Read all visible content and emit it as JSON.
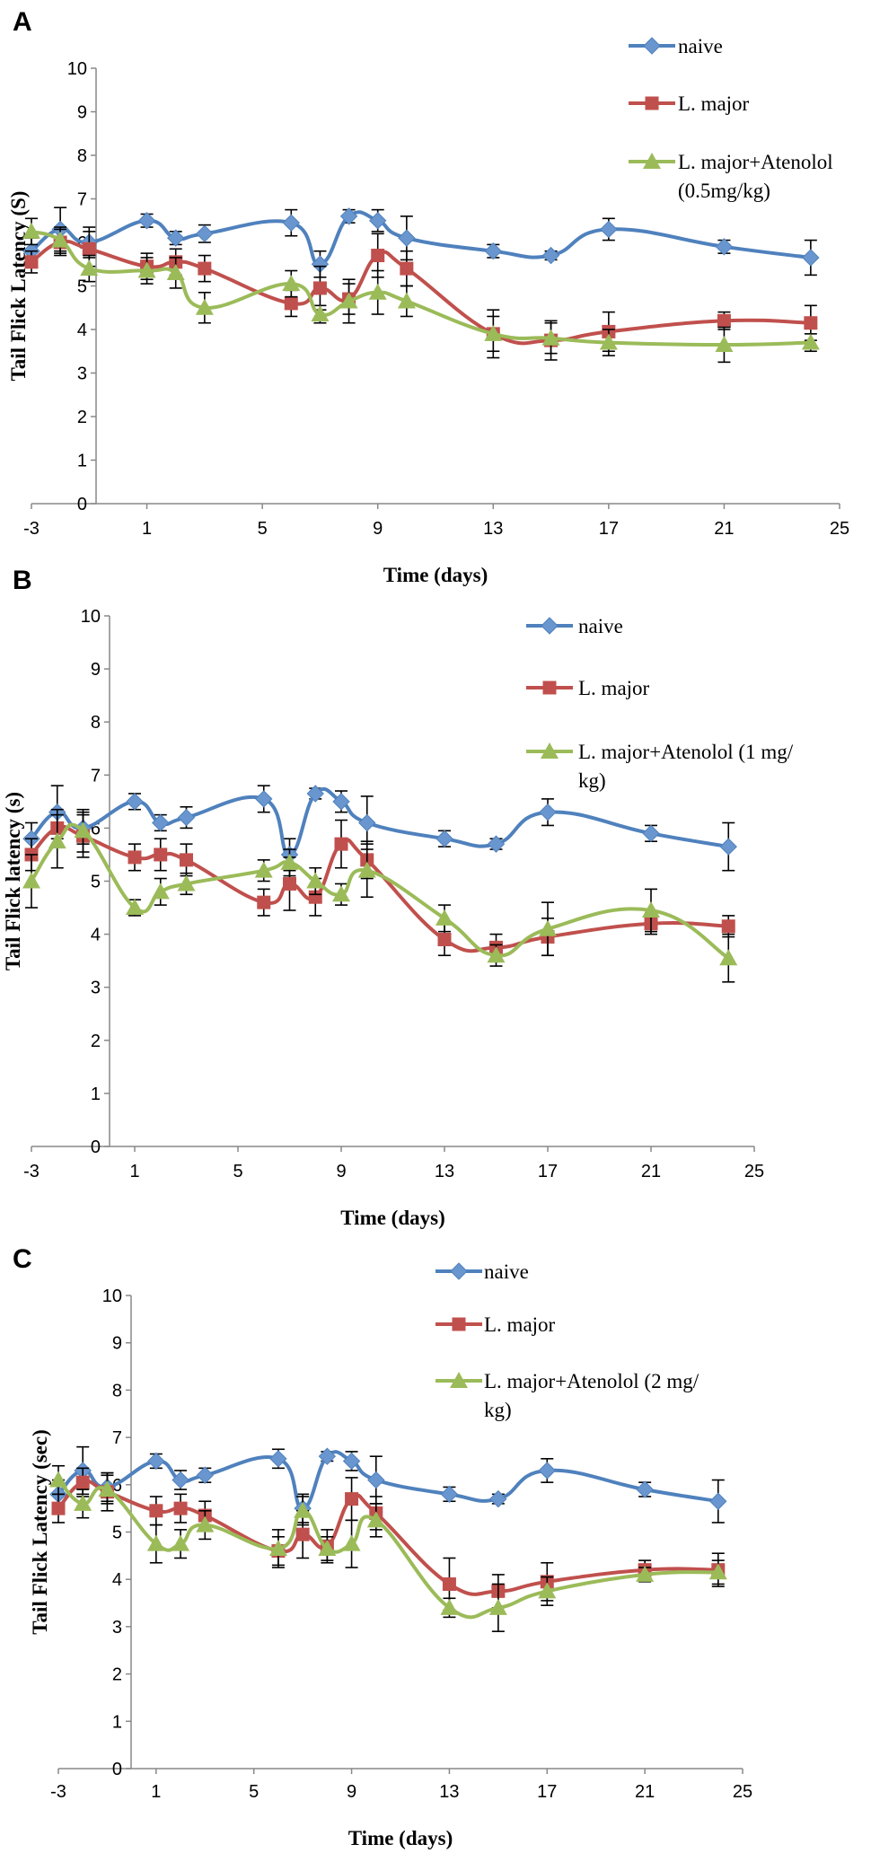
{
  "colors": {
    "naive": "#4F81BD",
    "lmajor": "#C0504D",
    "atenolol": "#9BBB59",
    "naive_marker": "#6A96CF"
  },
  "chart_data": [
    {
      "panel_label": "A",
      "type": "line",
      "xlabel": "Time (days)",
      "ylabel": "Tail Flick Latency (S)",
      "xlim": [
        -3,
        25
      ],
      "ylim": [
        0,
        10
      ],
      "xticks": [
        "-3",
        "1",
        "5",
        "9",
        "13",
        "17",
        "21",
        "25"
      ],
      "yticks": [
        "0",
        "1",
        "2",
        "3",
        "4",
        "5",
        "6",
        "7",
        "8",
        "9",
        "10"
      ],
      "legend_position": "top-right",
      "series": [
        {
          "name": "naive",
          "color": "#4F81BD",
          "marker": "diamond",
          "x": [
            -3,
            -2,
            -1,
            1,
            2,
            3,
            6,
            7,
            8,
            9,
            10,
            13,
            15,
            17,
            21,
            24
          ],
          "y": [
            5.8,
            6.3,
            6.0,
            6.5,
            6.1,
            6.2,
            6.45,
            5.5,
            6.6,
            6.5,
            6.1,
            5.8,
            5.7,
            6.3,
            5.9,
            5.65
          ],
          "err": [
            0.3,
            0.5,
            0.35,
            0.15,
            0.15,
            0.2,
            0.3,
            0.3,
            0.15,
            0.25,
            0.5,
            0.15,
            0.1,
            0.25,
            0.15,
            0.4
          ]
        },
        {
          "name": "L. major",
          "color": "#C0504D",
          "marker": "square",
          "x": [
            -3,
            -2,
            -1,
            1,
            2,
            3,
            6,
            7,
            8,
            9,
            10,
            13,
            15,
            17,
            21,
            24
          ],
          "y": [
            5.55,
            6.0,
            5.85,
            5.45,
            5.55,
            5.4,
            4.6,
            4.95,
            4.7,
            5.7,
            5.4,
            3.9,
            3.75,
            3.95,
            4.2,
            4.15
          ],
          "err": [
            0.25,
            0.3,
            0.4,
            0.3,
            0.3,
            0.3,
            0.3,
            0.5,
            0.35,
            0.5,
            0.4,
            0.55,
            0.45,
            0.45,
            0.2,
            0.4
          ]
        },
        {
          "name": "L. major+Atenolol (0.5mg/kg)",
          "name_lines": [
            "L. major+Atenolol",
            "(0.5mg/kg)"
          ],
          "color": "#9BBB59",
          "marker": "triangle",
          "x": [
            -3,
            -2,
            -1,
            1,
            2,
            3,
            6,
            7,
            8,
            9,
            10,
            13,
            15,
            17,
            21,
            24
          ],
          "y": [
            6.25,
            6.05,
            5.4,
            5.35,
            5.3,
            4.5,
            5.05,
            4.35,
            4.65,
            4.85,
            4.65,
            3.9,
            3.8,
            3.7,
            3.65,
            3.7
          ],
          "err": [
            0.3,
            0.3,
            0.3,
            0.3,
            0.35,
            0.35,
            0.3,
            0.2,
            0.5,
            0.5,
            0.35,
            0.4,
            0.35,
            0.3,
            0.4,
            0.2
          ]
        }
      ]
    },
    {
      "panel_label": "B",
      "type": "line",
      "xlabel": "Time (days)",
      "ylabel": "Tail Flick latency (s)",
      "xlim": [
        -3,
        25
      ],
      "ylim": [
        0,
        10
      ],
      "xticks": [
        "-3",
        "1",
        "5",
        "9",
        "13",
        "17",
        "21",
        "25"
      ],
      "yticks": [
        "0",
        "1",
        "2",
        "3",
        "4",
        "5",
        "6",
        "7",
        "8",
        "9",
        "10"
      ],
      "legend_position": "top-right",
      "series": [
        {
          "name": "naive",
          "color": "#4F81BD",
          "marker": "diamond",
          "x": [
            -3,
            -2,
            -1,
            1,
            2,
            3,
            6,
            7,
            8,
            9,
            10,
            13,
            15,
            17,
            21,
            24
          ],
          "y": [
            5.8,
            6.3,
            6.0,
            6.5,
            6.1,
            6.2,
            6.55,
            5.5,
            6.65,
            6.5,
            6.1,
            5.8,
            5.7,
            6.3,
            5.9,
            5.65
          ],
          "err": [
            0.3,
            0.5,
            0.3,
            0.15,
            0.15,
            0.2,
            0.25,
            0.3,
            0.1,
            0.2,
            0.5,
            0.15,
            0.1,
            0.25,
            0.15,
            0.45
          ]
        },
        {
          "name": "L. major",
          "color": "#C0504D",
          "marker": "square",
          "x": [
            -3,
            -2,
            -1,
            1,
            2,
            3,
            6,
            7,
            8,
            9,
            10,
            13,
            15,
            17,
            21,
            24
          ],
          "y": [
            5.5,
            6.0,
            5.85,
            5.45,
            5.5,
            5.4,
            4.6,
            4.95,
            4.7,
            5.7,
            5.4,
            3.9,
            3.75,
            3.95,
            4.2,
            4.15
          ],
          "err": [
            0.3,
            0.35,
            0.4,
            0.25,
            0.3,
            0.3,
            0.25,
            0.5,
            0.35,
            0.45,
            0.35,
            0.3,
            0.25,
            0.35,
            0.2,
            0.2
          ]
        },
        {
          "name": "L. major+Atenolol (1 mg/kg)",
          "name_lines": [
            "L. major+Atenolol (1 mg/",
            "kg)"
          ],
          "color": "#9BBB59",
          "marker": "triangle",
          "x": [
            -3,
            -2,
            -1,
            1,
            2,
            3,
            6,
            7,
            8,
            9,
            10,
            13,
            15,
            17,
            21,
            24
          ],
          "y": [
            5.0,
            5.75,
            5.95,
            4.5,
            4.8,
            4.95,
            5.2,
            5.35,
            5.0,
            4.75,
            5.2,
            4.3,
            3.6,
            4.1,
            4.45,
            3.55
          ],
          "err": [
            0.5,
            0.5,
            0.4,
            0.15,
            0.25,
            0.2,
            0.2,
            0.25,
            0.25,
            0.2,
            0.5,
            0.25,
            0.2,
            0.5,
            0.4,
            0.45
          ]
        }
      ]
    },
    {
      "panel_label": "C",
      "type": "line",
      "xlabel": "Time (days)",
      "ylabel": "Tail Flick Latency (sec)",
      "xlim": [
        -3,
        25
      ],
      "ylim": [
        0,
        10
      ],
      "xticks": [
        "-3",
        "1",
        "5",
        "9",
        "13",
        "17",
        "21",
        "25"
      ],
      "yticks": [
        "0",
        "1",
        "2",
        "3",
        "4",
        "5",
        "6",
        "7",
        "8",
        "9",
        "10"
      ],
      "legend_position": "top-right",
      "series": [
        {
          "name": "naive",
          "color": "#4F81BD",
          "marker": "diamond",
          "x": [
            -3,
            -2,
            -1,
            1,
            2,
            3,
            6,
            7,
            8,
            9,
            10,
            13,
            15,
            17,
            21,
            24
          ],
          "y": [
            5.8,
            6.3,
            5.95,
            6.5,
            6.1,
            6.2,
            6.55,
            5.5,
            6.6,
            6.5,
            6.1,
            5.8,
            5.7,
            6.3,
            5.9,
            5.65
          ],
          "err": [
            0.3,
            0.5,
            0.3,
            0.15,
            0.2,
            0.15,
            0.2,
            0.3,
            0.1,
            0.2,
            0.5,
            0.15,
            0.1,
            0.25,
            0.15,
            0.45
          ]
        },
        {
          "name": "L. major",
          "color": "#C0504D",
          "marker": "square",
          "x": [
            -3,
            -2,
            -1,
            1,
            2,
            3,
            6,
            7,
            8,
            9,
            10,
            13,
            15,
            17,
            21,
            24
          ],
          "y": [
            5.5,
            6.05,
            5.85,
            5.45,
            5.5,
            5.35,
            4.6,
            4.95,
            4.7,
            5.7,
            5.4,
            3.9,
            3.75,
            3.95,
            4.2,
            4.2
          ],
          "err": [
            0.3,
            0.3,
            0.4,
            0.3,
            0.3,
            0.3,
            0.3,
            0.5,
            0.35,
            0.45,
            0.35,
            0.55,
            0.35,
            0.4,
            0.2,
            0.35
          ]
        },
        {
          "name": "L. major+Atenolol (2 mg/kg)",
          "name_lines": [
            "L. major+Atenolol (2 mg/",
            "kg)"
          ],
          "color": "#9BBB59",
          "marker": "triangle",
          "x": [
            -3,
            -2,
            -1,
            1,
            2,
            3,
            6,
            7,
            8,
            9,
            10,
            13,
            15,
            17,
            21,
            24
          ],
          "y": [
            6.1,
            5.6,
            5.9,
            4.75,
            4.75,
            5.15,
            4.65,
            5.45,
            4.65,
            4.75,
            5.25,
            3.4,
            3.4,
            3.75,
            4.1,
            4.15
          ],
          "err": [
            0.3,
            0.3,
            0.3,
            0.4,
            0.3,
            0.3,
            0.4,
            0.3,
            0.25,
            0.5,
            0.35,
            0.2,
            0.5,
            0.3,
            0.15,
            0.25
          ]
        }
      ]
    }
  ]
}
